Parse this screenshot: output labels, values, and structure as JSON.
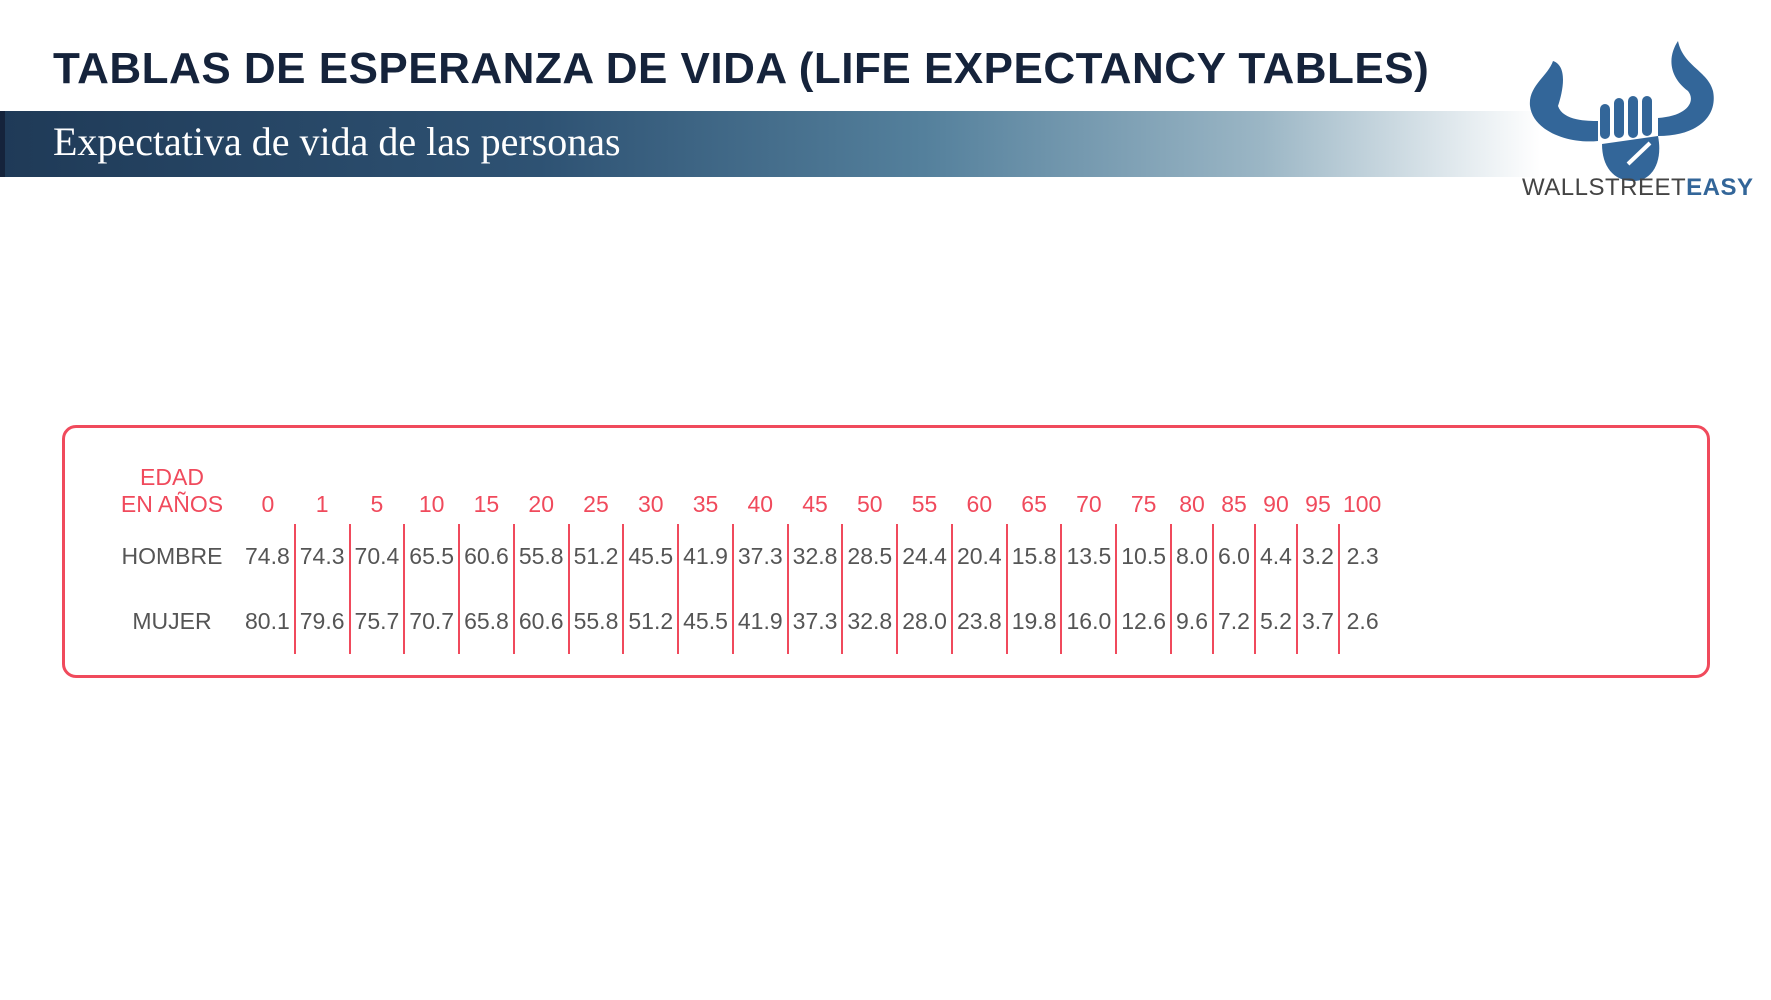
{
  "header": {
    "title": "TABLAS DE ESPERANZA DE VIDA (LIFE EXPECTANCY TABLES)",
    "subtitle": "Expectativa de vida de las personas"
  },
  "logo": {
    "text_light": "WALLSTREET",
    "text_bold": "EASY",
    "color": "#336699"
  },
  "table": {
    "age_label_1": "EDAD",
    "age_label_2": "EN AÑOS",
    "ages": [
      "0",
      "1",
      "5",
      "10",
      "15",
      "20",
      "25",
      "30",
      "35",
      "40",
      "45",
      "50",
      "55",
      "60",
      "65",
      "70",
      "75",
      "80",
      "85",
      "90",
      "95",
      "100"
    ],
    "rows": [
      {
        "label": "HOMBRE",
        "values": [
          "74.8",
          "74.3",
          "70.4",
          "65.5",
          "60.6",
          "55.8",
          "51.2",
          "45.5",
          "41.9",
          "37.3",
          "32.8",
          "28.5",
          "24.4",
          "20.4",
          "15.8",
          "13.5",
          "10.5",
          "8.0",
          "6.0",
          "4.4",
          "3.2",
          "2.3"
        ]
      },
      {
        "label": "MUJER",
        "values": [
          "80.1",
          "79.6",
          "75.7",
          "70.7",
          "65.8",
          "60.6",
          "55.8",
          "51.2",
          "45.5",
          "41.9",
          "37.3",
          "32.8",
          "28.0",
          "23.8",
          "19.8",
          "16.0",
          "12.6",
          "9.6",
          "7.2",
          "5.2",
          "3.7",
          "2.6"
        ]
      }
    ],
    "accent_color": "#f04a5c"
  }
}
